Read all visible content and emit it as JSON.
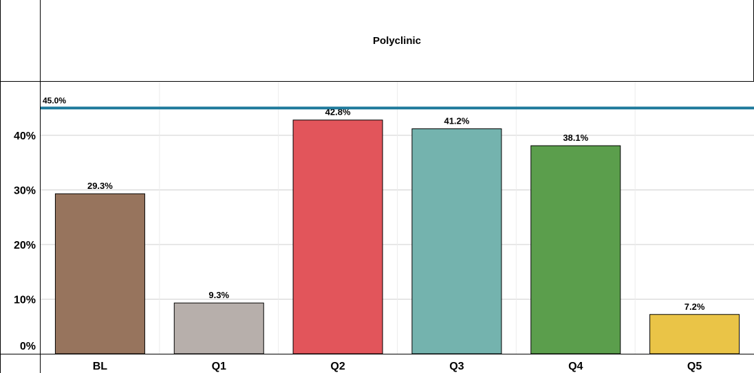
{
  "chart_data": {
    "type": "bar",
    "title": "Polyclinic",
    "xlabel": "",
    "ylabel": "",
    "categories": [
      "BL",
      "Q1",
      "Q2",
      "Q3",
      "Q4",
      "Q5"
    ],
    "values": [
      29.3,
      9.3,
      42.8,
      41.2,
      38.1,
      7.2
    ],
    "value_labels": [
      "29.3%",
      "9.3%",
      "42.8%",
      "41.2%",
      "38.1%",
      "7.2%"
    ],
    "bar_colors": [
      "#97745d",
      "#b7afab",
      "#e2555b",
      "#74b3ae",
      "#5b9e4c",
      "#eac447"
    ],
    "ylim": [
      0,
      50
    ],
    "y_ticks": [
      0,
      10,
      20,
      30,
      40
    ],
    "y_tick_labels": [
      "0%",
      "10%",
      "20%",
      "30%",
      "40%"
    ],
    "reference_line": {
      "value": 45.0,
      "label": "45.0%",
      "color": "#1f7a9c"
    },
    "grid": true,
    "legend": "none"
  }
}
